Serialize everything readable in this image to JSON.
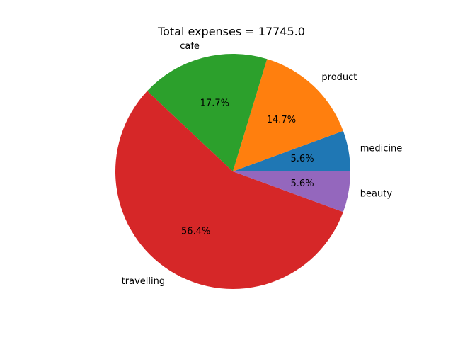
{
  "chart_data": {
    "type": "pie",
    "title": "Total expenses = 17745.0",
    "start_angle_deg": 0,
    "direction": "counterclockwise",
    "legend": "none",
    "slices": [
      {
        "label": "medicine",
        "percent_label": "5.6%",
        "value": 5.6,
        "color": "#1f77b4"
      },
      {
        "label": "product",
        "percent_label": "14.7%",
        "value": 14.7,
        "color": "#ff7f0e"
      },
      {
        "label": "cafe",
        "percent_label": "17.7%",
        "value": 17.7,
        "color": "#2ca02c"
      },
      {
        "label": "travelling",
        "percent_label": "56.4%",
        "value": 56.4,
        "color": "#d62728"
      },
      {
        "label": "beauty",
        "percent_label": "5.6%",
        "value": 5.6,
        "color": "#9467bd"
      }
    ]
  }
}
